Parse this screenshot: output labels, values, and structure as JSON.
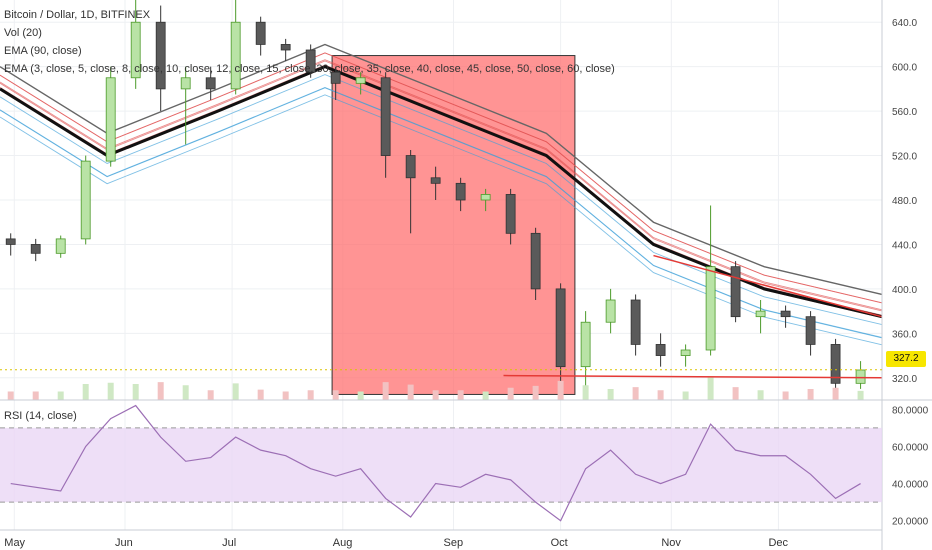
{
  "header": {
    "symbol_title": "Bitcoin / Dollar, 1D, BITFINEX",
    "indicator_vol": "Vol (20)",
    "indicator_ema90": "EMA (90, close)",
    "indicator_ema_ribbon": "EMA (3, close, 5, close, 8, close, 10, close, 12, close, 15, close, 30, close, 35, close, 40, close, 45, close, 50, close, 60, close)"
  },
  "current_price_label": "327.2",
  "rsi_panel": {
    "title": "RSI (14, close)"
  },
  "colors": {
    "up_candle": "#4c9a2a",
    "down_candle": "#333333",
    "ema90": "#111111",
    "ribbon_fast": "#3ea0d9",
    "ribbon_slow": "#e05050",
    "highlight_box": "#ff6b6b",
    "rsi_line": "#9c6fb5",
    "rsi_band": "#ead7f5",
    "support_line": "#e53935",
    "price_tag": "#f7e600"
  },
  "chart_data": [
    {
      "type": "candlestick",
      "title": "Bitcoin / Dollar, 1D, BITFINEX",
      "x_ticks": [
        "May",
        "Jun",
        "Jul",
        "Aug",
        "Sep",
        "Oct",
        "Nov",
        "Dec"
      ],
      "y_ticks": [
        320,
        360,
        400,
        440,
        480,
        520,
        560,
        600,
        640
      ],
      "ylim": [
        300,
        660
      ],
      "xlim": [
        "2014-04-27",
        "2014-12-30"
      ],
      "last_price": 327.2,
      "ohlc_approx": [
        [
          "2014-04-30",
          445,
          450,
          430,
          440
        ],
        [
          "2014-05-07",
          440,
          445,
          425,
          432
        ],
        [
          "2014-05-14",
          432,
          448,
          428,
          445
        ],
        [
          "2014-05-21",
          445,
          520,
          440,
          515
        ],
        [
          "2014-05-28",
          515,
          600,
          510,
          590
        ],
        [
          "2014-06-04",
          590,
          660,
          580,
          640
        ],
        [
          "2014-06-11",
          640,
          655,
          560,
          580
        ],
        [
          "2014-06-18",
          580,
          600,
          530,
          590
        ],
        [
          "2014-06-25",
          590,
          600,
          570,
          580
        ],
        [
          "2014-07-02",
          580,
          660,
          575,
          640
        ],
        [
          "2014-07-09",
          640,
          645,
          610,
          620
        ],
        [
          "2014-07-16",
          620,
          625,
          605,
          615
        ],
        [
          "2014-07-23",
          615,
          620,
          590,
          595
        ],
        [
          "2014-07-30",
          595,
          600,
          570,
          585
        ],
        [
          "2014-08-06",
          585,
          595,
          575,
          590
        ],
        [
          "2014-08-13",
          590,
          595,
          500,
          520
        ],
        [
          "2014-08-20",
          520,
          525,
          450,
          500
        ],
        [
          "2014-08-27",
          500,
          510,
          480,
          495
        ],
        [
          "2014-09-03",
          495,
          500,
          470,
          480
        ],
        [
          "2014-09-10",
          480,
          490,
          470,
          485
        ],
        [
          "2014-09-17",
          485,
          490,
          440,
          450
        ],
        [
          "2014-09-24",
          450,
          455,
          390,
          400
        ],
        [
          "2014-10-01",
          400,
          405,
          300,
          330
        ],
        [
          "2014-10-08",
          330,
          380,
          310,
          370
        ],
        [
          "2014-10-15",
          370,
          400,
          360,
          390
        ],
        [
          "2014-10-22",
          390,
          395,
          340,
          350
        ],
        [
          "2014-10-29",
          350,
          360,
          330,
          340
        ],
        [
          "2014-11-05",
          340,
          350,
          330,
          345
        ],
        [
          "2014-11-12",
          345,
          475,
          340,
          420
        ],
        [
          "2014-11-19",
          420,
          425,
          370,
          375
        ],
        [
          "2014-11-26",
          375,
          390,
          360,
          380
        ],
        [
          "2014-12-03",
          380,
          385,
          365,
          375
        ],
        [
          "2014-12-10",
          375,
          380,
          340,
          350
        ],
        [
          "2014-12-17",
          350,
          355,
          305,
          315
        ],
        [
          "2014-12-24",
          315,
          335,
          310,
          327
        ]
      ],
      "ema90_approx": [
        [
          "2014-04-27",
          580
        ],
        [
          "2014-05-27",
          520
        ],
        [
          "2014-06-27",
          560
        ],
        [
          "2014-07-27",
          600
        ],
        [
          "2014-08-27",
          560
        ],
        [
          "2014-09-27",
          520
        ],
        [
          "2014-10-27",
          440
        ],
        [
          "2014-11-27",
          400
        ],
        [
          "2014-12-30",
          375
        ]
      ],
      "resistance_line": [
        [
          "2014-10-27",
          430
        ],
        [
          "2014-12-30",
          375
        ]
      ],
      "support_line": [
        [
          "2014-09-15",
          322
        ],
        [
          "2014-12-30",
          320
        ]
      ],
      "highlight_region": {
        "x_from": "2014-07-29",
        "x_to": "2014-10-05",
        "y_from": 305,
        "y_to": 610
      }
    },
    {
      "type": "line",
      "title": "RSI (14, close)",
      "y_ticks": [
        20,
        40,
        60,
        80
      ],
      "ylim": [
        15,
        85
      ],
      "bands": [
        30,
        70
      ],
      "values_approx": [
        [
          "2014-04-30",
          40
        ],
        [
          "2014-05-14",
          36
        ],
        [
          "2014-05-21",
          60
        ],
        [
          "2014-05-28",
          75
        ],
        [
          "2014-06-04",
          82
        ],
        [
          "2014-06-11",
          65
        ],
        [
          "2014-06-18",
          52
        ],
        [
          "2014-06-25",
          54
        ],
        [
          "2014-07-02",
          65
        ],
        [
          "2014-07-09",
          58
        ],
        [
          "2014-07-16",
          55
        ],
        [
          "2014-07-23",
          48
        ],
        [
          "2014-07-30",
          44
        ],
        [
          "2014-08-06",
          48
        ],
        [
          "2014-08-13",
          32
        ],
        [
          "2014-08-20",
          22
        ],
        [
          "2014-08-27",
          40
        ],
        [
          "2014-09-03",
          38
        ],
        [
          "2014-09-10",
          45
        ],
        [
          "2014-09-17",
          42
        ],
        [
          "2014-09-24",
          30
        ],
        [
          "2014-10-01",
          20
        ],
        [
          "2014-10-08",
          48
        ],
        [
          "2014-10-15",
          58
        ],
        [
          "2014-10-22",
          45
        ],
        [
          "2014-10-29",
          40
        ],
        [
          "2014-11-05",
          45
        ],
        [
          "2014-11-12",
          72
        ],
        [
          "2014-11-19",
          58
        ],
        [
          "2014-11-26",
          55
        ],
        [
          "2014-12-03",
          55
        ],
        [
          "2014-12-10",
          45
        ],
        [
          "2014-12-17",
          32
        ],
        [
          "2014-12-24",
          40
        ]
      ]
    }
  ]
}
